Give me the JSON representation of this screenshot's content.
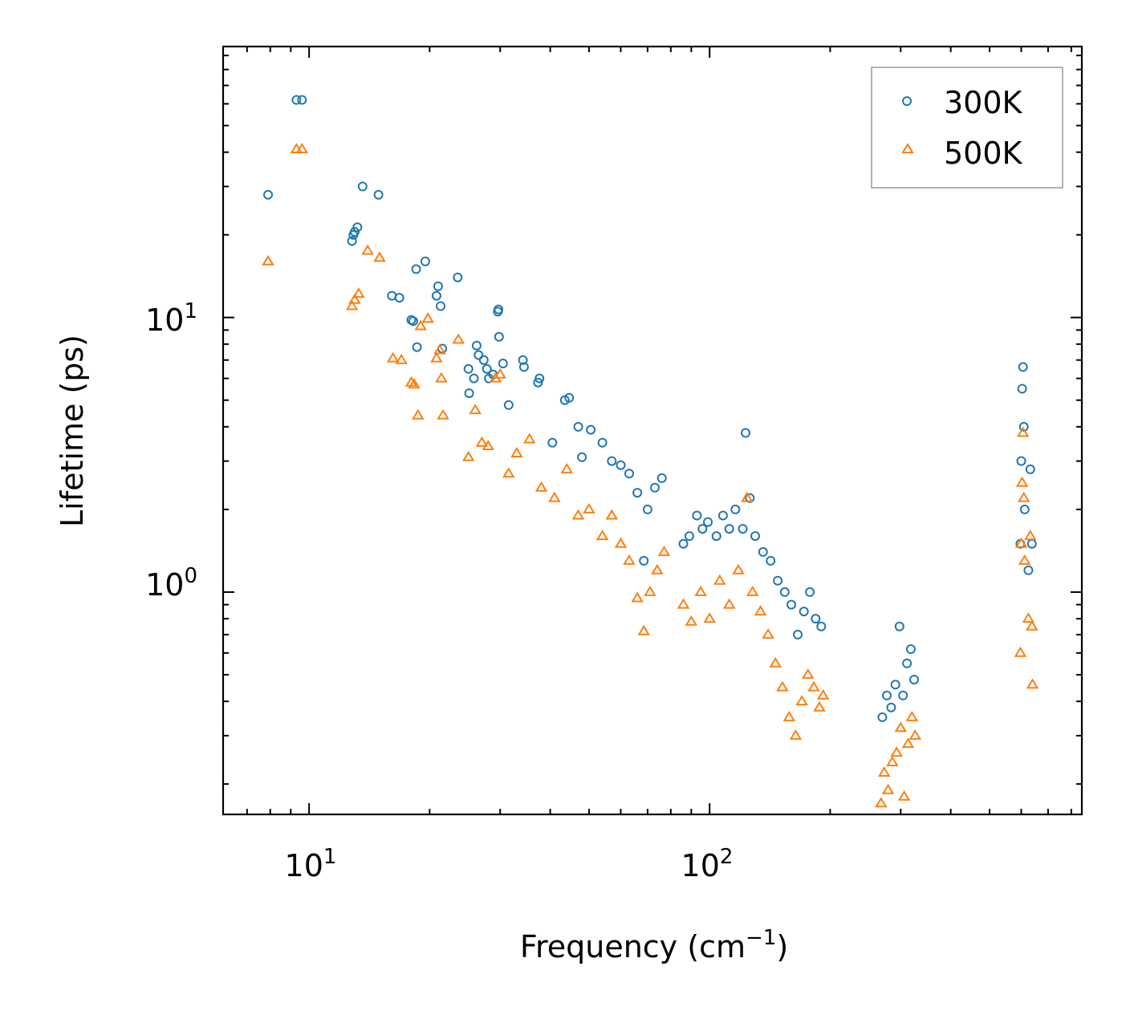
{
  "chart_data": {
    "type": "scatter",
    "title": "",
    "xlabel": "Frequency (cm",
    "xlabel_sup": "−1",
    "xlabel_end": ")",
    "ylabel": "Lifetime (ps)",
    "xscale": "log",
    "yscale": "log",
    "xlim": [
      6.1,
      850
    ],
    "ylim": [
      0.155,
      97
    ],
    "x_ticks": [
      {
        "value": 10,
        "base": "10",
        "exp": "1"
      },
      {
        "value": 100,
        "base": "10",
        "exp": "2"
      }
    ],
    "y_ticks": [
      {
        "value": 1,
        "base": "10",
        "exp": "0"
      },
      {
        "value": 10,
        "base": "10",
        "exp": "1"
      }
    ],
    "legend": {
      "position": "top-right",
      "entries": [
        "300K",
        "500K"
      ]
    },
    "colors": {
      "300K": "#1f77b4",
      "500K": "#ff7f0e",
      "axis": "#000000",
      "legend_border": "#999999"
    },
    "series": [
      {
        "name": "300K",
        "marker": "circle",
        "points": [
          [
            7.9,
            28.0
          ],
          [
            9.3,
            62.0
          ],
          [
            9.6,
            62.0
          ],
          [
            12.8,
            19.0
          ],
          [
            12.9,
            20.0
          ],
          [
            13.0,
            20.5
          ],
          [
            13.2,
            21.3
          ],
          [
            13.6,
            30.0
          ],
          [
            14.9,
            28.0
          ],
          [
            16.1,
            12.0
          ],
          [
            16.8,
            11.8
          ],
          [
            18.0,
            9.8
          ],
          [
            18.2,
            9.7
          ],
          [
            18.5,
            15.0
          ],
          [
            18.6,
            7.8
          ],
          [
            19.5,
            16.0
          ],
          [
            20.8,
            12.0
          ],
          [
            21.0,
            13.0
          ],
          [
            21.3,
            11.0
          ],
          [
            21.5,
            7.7
          ],
          [
            23.5,
            14.0
          ],
          [
            25.0,
            6.5
          ],
          [
            25.1,
            5.3
          ],
          [
            25.8,
            6.0
          ],
          [
            26.2,
            7.9
          ],
          [
            26.5,
            7.3
          ],
          [
            27.3,
            7.0
          ],
          [
            27.8,
            6.5
          ],
          [
            28.1,
            6.0
          ],
          [
            28.8,
            6.2
          ],
          [
            29.6,
            10.5
          ],
          [
            29.7,
            10.7
          ],
          [
            29.8,
            8.5
          ],
          [
            30.5,
            6.8
          ],
          [
            31.5,
            4.8
          ],
          [
            34.2,
            7.0
          ],
          [
            34.4,
            6.6
          ],
          [
            37.3,
            5.8
          ],
          [
            37.6,
            6.0
          ],
          [
            40.5,
            3.5
          ],
          [
            43.5,
            5.0
          ],
          [
            44.6,
            5.1
          ],
          [
            47.0,
            4.0
          ],
          [
            48.0,
            3.1
          ],
          [
            50.5,
            3.9
          ],
          [
            54.0,
            3.5
          ],
          [
            57.0,
            3.0
          ],
          [
            60.0,
            2.9
          ],
          [
            63.0,
            2.7
          ],
          [
            66.0,
            2.3
          ],
          [
            68.5,
            1.3
          ],
          [
            70.0,
            2.0
          ],
          [
            73.0,
            2.4
          ],
          [
            76.0,
            2.6
          ],
          [
            86.0,
            1.5
          ],
          [
            89.0,
            1.6
          ],
          [
            93.0,
            1.9
          ],
          [
            96.0,
            1.7
          ],
          [
            99.0,
            1.8
          ],
          [
            104.0,
            1.6
          ],
          [
            108.0,
            1.9
          ],
          [
            112.0,
            1.7
          ],
          [
            116.0,
            2.0
          ],
          [
            121.0,
            1.7
          ],
          [
            123.0,
            3.8
          ],
          [
            126.0,
            2.2
          ],
          [
            130.0,
            1.6
          ],
          [
            136.0,
            1.4
          ],
          [
            142.0,
            1.3
          ],
          [
            148.0,
            1.1
          ],
          [
            154.0,
            1.0
          ],
          [
            160.0,
            0.9
          ],
          [
            166.0,
            0.7
          ],
          [
            172.0,
            0.85
          ],
          [
            178.0,
            1.0
          ],
          [
            184.0,
            0.8
          ],
          [
            190.0,
            0.75
          ],
          [
            270.0,
            0.35
          ],
          [
            277.0,
            0.42
          ],
          [
            284.0,
            0.38
          ],
          [
            291.0,
            0.46
          ],
          [
            298.0,
            0.75
          ],
          [
            304.0,
            0.42
          ],
          [
            311.0,
            0.55
          ],
          [
            318.0,
            0.62
          ],
          [
            324.0,
            0.48
          ],
          [
            597.0,
            1.5
          ],
          [
            600.0,
            3.0
          ],
          [
            603.0,
            5.5
          ],
          [
            606.0,
            6.6
          ],
          [
            609.0,
            4.0
          ],
          [
            612.0,
            2.0
          ],
          [
            625.0,
            1.2
          ],
          [
            632.0,
            2.8
          ],
          [
            638.0,
            1.5
          ]
        ]
      },
      {
        "name": "500K",
        "marker": "triangle",
        "points": [
          [
            7.9,
            16.0
          ],
          [
            9.3,
            41.0
          ],
          [
            9.6,
            41.0
          ],
          [
            12.8,
            11.0
          ],
          [
            13.0,
            11.6
          ],
          [
            13.3,
            12.2
          ],
          [
            14.0,
            17.5
          ],
          [
            15.0,
            16.5
          ],
          [
            16.2,
            7.1
          ],
          [
            17.0,
            7.0
          ],
          [
            18.0,
            5.8
          ],
          [
            18.3,
            5.7
          ],
          [
            18.7,
            4.4
          ],
          [
            19.0,
            9.3
          ],
          [
            19.8,
            9.9
          ],
          [
            20.8,
            7.1
          ],
          [
            21.2,
            7.6
          ],
          [
            21.4,
            6.0
          ],
          [
            21.6,
            4.4
          ],
          [
            23.6,
            8.3
          ],
          [
            25.0,
            3.1
          ],
          [
            26.0,
            4.6
          ],
          [
            27.0,
            3.5
          ],
          [
            28.0,
            3.4
          ],
          [
            29.2,
            6.0
          ],
          [
            30.0,
            6.2
          ],
          [
            31.5,
            2.7
          ],
          [
            33.0,
            3.2
          ],
          [
            35.5,
            3.6
          ],
          [
            38.0,
            2.4
          ],
          [
            41.0,
            2.2
          ],
          [
            44.0,
            2.8
          ],
          [
            47.0,
            1.9
          ],
          [
            50.0,
            2.0
          ],
          [
            54.0,
            1.6
          ],
          [
            57.0,
            1.9
          ],
          [
            60.0,
            1.5
          ],
          [
            63.0,
            1.3
          ],
          [
            66.0,
            0.95
          ],
          [
            68.5,
            0.72
          ],
          [
            71.0,
            1.0
          ],
          [
            74.0,
            1.2
          ],
          [
            77.0,
            1.4
          ],
          [
            86.0,
            0.9
          ],
          [
            90.0,
            0.78
          ],
          [
            95.0,
            1.0
          ],
          [
            100.0,
            0.8
          ],
          [
            106.0,
            1.1
          ],
          [
            112.0,
            0.9
          ],
          [
            118.0,
            1.2
          ],
          [
            124.0,
            2.2
          ],
          [
            128.0,
            1.0
          ],
          [
            134.0,
            0.85
          ],
          [
            140.0,
            0.7
          ],
          [
            146.0,
            0.55
          ],
          [
            152.0,
            0.45
          ],
          [
            158.0,
            0.35
          ],
          [
            164.0,
            0.3
          ],
          [
            170.0,
            0.4
          ],
          [
            176.0,
            0.5
          ],
          [
            182.0,
            0.45
          ],
          [
            188.0,
            0.38
          ],
          [
            192.0,
            0.42
          ],
          [
            268.0,
            0.17
          ],
          [
            273.0,
            0.22
          ],
          [
            279.0,
            0.19
          ],
          [
            286.0,
            0.24
          ],
          [
            293.0,
            0.26
          ],
          [
            300.0,
            0.32
          ],
          [
            306.0,
            0.18
          ],
          [
            313.0,
            0.28
          ],
          [
            320.0,
            0.35
          ],
          [
            326.0,
            0.3
          ],
          [
            597.0,
            0.6
          ],
          [
            600.0,
            1.5
          ],
          [
            603.0,
            2.5
          ],
          [
            606.0,
            3.8
          ],
          [
            609.0,
            2.2
          ],
          [
            612.0,
            1.3
          ],
          [
            625.0,
            0.8
          ],
          [
            632.0,
            1.6
          ],
          [
            638.0,
            0.75
          ],
          [
            640.0,
            0.46
          ]
        ]
      }
    ]
  }
}
